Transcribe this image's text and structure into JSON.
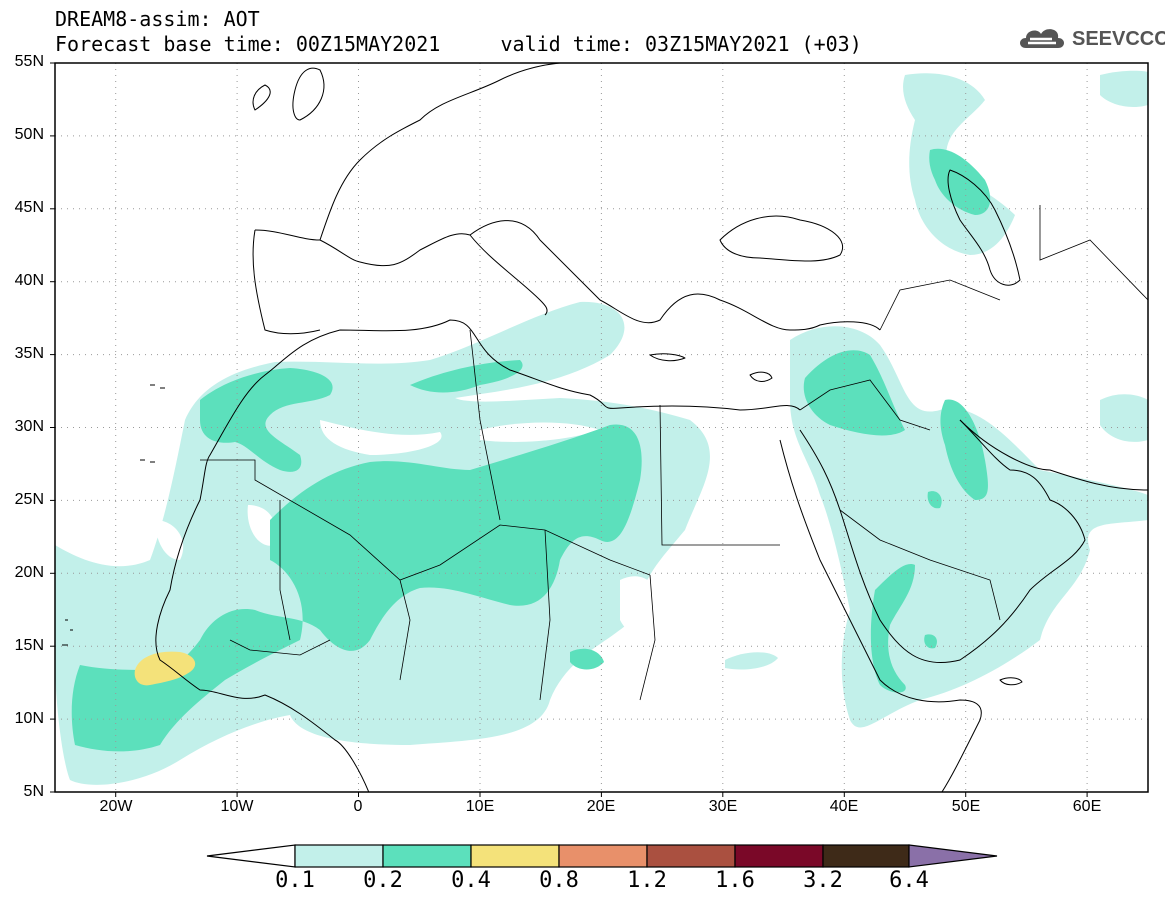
{
  "header": {
    "title_line1": "DREAM8-assim: AOT",
    "title_line2": "Forecast base time: 00Z15MAY2021     valid time: 03Z15MAY2021 (+03)"
  },
  "logo": {
    "text": "SEEVCCC",
    "icon": "cloud-icon"
  },
  "map": {
    "lat_range": [
      5,
      55
    ],
    "lon_range": [
      -25,
      65
    ],
    "grid": "dotted",
    "y_labels": [
      "55N",
      "50N",
      "45N",
      "40N",
      "35N",
      "30N",
      "25N",
      "20N",
      "15N",
      "10N",
      "5N"
    ],
    "x_labels": [
      "20W",
      "10W",
      "0",
      "10E",
      "20E",
      "30E",
      "40E",
      "50E",
      "60E"
    ]
  },
  "colorbar": {
    "thresholds": [
      "0.1",
      "0.2",
      "0.4",
      "0.8",
      "1.2",
      "1.6",
      "3.2",
      "6.4"
    ],
    "colors": [
      "#ffffff",
      "#c2f0ea",
      "#5ce0bc",
      "#f4e27a",
      "#e8906a",
      "#aa5040",
      "#7a0828",
      "#3e2a18",
      "#8a70a8"
    ]
  },
  "colors": {
    "class_01_02": "#c2f0ea",
    "class_02_04": "#5ce0bc",
    "class_04_08": "#f4e27a"
  }
}
